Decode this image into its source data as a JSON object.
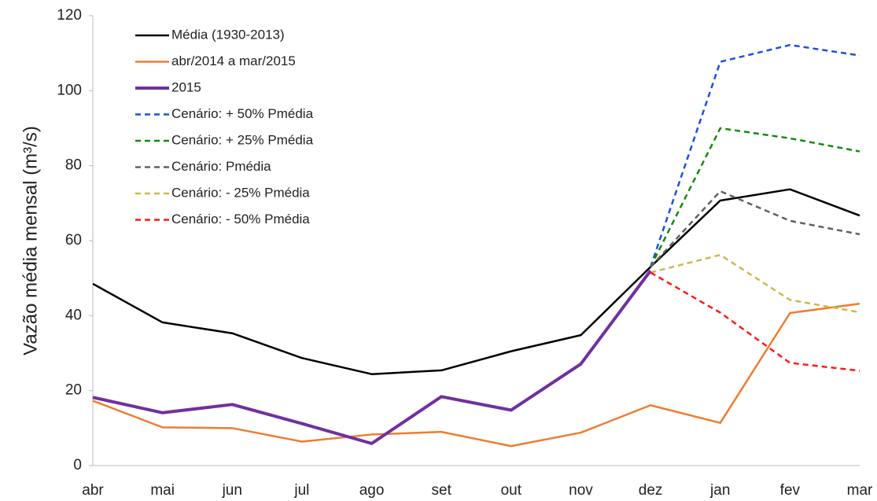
{
  "chart_data": {
    "type": "line",
    "y_label": "Vazão média mensal (m³/s)",
    "categories": [
      "abr",
      "mai",
      "jun",
      "jul",
      "ago",
      "set",
      "out",
      "nov",
      "dez",
      "jan",
      "fev",
      "mar"
    ],
    "ylim": [
      0,
      120
    ],
    "yticks": [
      0,
      20,
      40,
      60,
      80,
      100,
      120
    ],
    "grid": false,
    "legend": "upper left",
    "series": [
      {
        "name": "Média (1930-2013)",
        "color": "#000000",
        "dashed": false,
        "width": 2.5,
        "values": [
          48.5,
          38.2,
          35.3,
          28.7,
          24.4,
          25.4,
          30.5,
          34.8,
          53,
          70.7,
          73.7,
          66.7
        ]
      },
      {
        "name": "abr/2014 a mar/2015",
        "color": "#ed7d31",
        "dashed": false,
        "width": 2.5,
        "values": [
          17.3,
          10.2,
          10,
          6.4,
          8.3,
          9,
          5.2,
          8.8,
          16.1,
          11.4,
          40.7,
          43.2
        ]
      },
      {
        "name": "2015",
        "color": "#7030a0",
        "dashed": false,
        "width": 4,
        "values": [
          18.2,
          14.1,
          16.3,
          11.2,
          5.9,
          18.4,
          14.8,
          27.1,
          52,
          null,
          null,
          null
        ]
      },
      {
        "name": "Cenário: + 50% Pmédia",
        "color": "#1f4fe0",
        "dashed": true,
        "width": 2.5,
        "values": [
          null,
          null,
          null,
          null,
          null,
          null,
          null,
          null,
          53,
          107.7,
          112.2,
          109.4
        ]
      },
      {
        "name": "Cenário: + 25% Pmédia",
        "color": "#128a12",
        "dashed": true,
        "width": 2.5,
        "values": [
          null,
          null,
          null,
          null,
          null,
          null,
          null,
          null,
          53,
          90,
          87.3,
          83.8
        ]
      },
      {
        "name": "Cenário: Pmédia",
        "color": "#606060",
        "dashed": true,
        "width": 2.5,
        "values": [
          null,
          null,
          null,
          null,
          null,
          null,
          null,
          null,
          53,
          73.2,
          65.3,
          61.7
        ]
      },
      {
        "name": "Cenário: - 25% Pmédia",
        "color": "#cdb94e",
        "dashed": true,
        "width": 2.5,
        "values": [
          null,
          null,
          null,
          null,
          null,
          null,
          null,
          null,
          51.5,
          56.2,
          44.2,
          40.9
        ]
      },
      {
        "name": "Cenário: - 50% Pmédia",
        "color": "#ff1a1a",
        "dashed": true,
        "width": 2.5,
        "values": [
          null,
          null,
          null,
          null,
          null,
          null,
          null,
          null,
          51.5,
          40.8,
          27.4,
          25.3
        ]
      }
    ]
  }
}
